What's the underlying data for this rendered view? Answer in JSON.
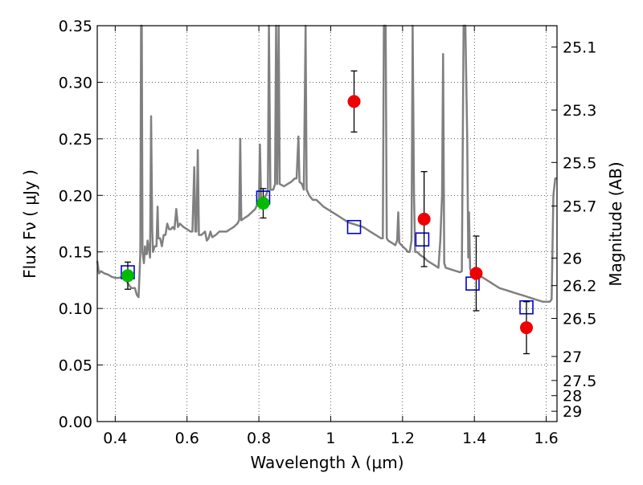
{
  "chart_data": {
    "type": "scatter",
    "xlabel": "Wavelength  λ (μm)",
    "ylabel": "Flux  Fν  ( μJy )",
    "y2label": "Magnitude (AB)",
    "xlim": [
      0.35,
      1.63
    ],
    "ylim": [
      0.0,
      0.35
    ],
    "grid": true,
    "x_ticks": [
      {
        "value": 0.4,
        "label": "0.4"
      },
      {
        "value": 0.6,
        "label": "0.6"
      },
      {
        "value": 0.8,
        "label": "0.8"
      },
      {
        "value": 1.0,
        "label": "1"
      },
      {
        "value": 1.2,
        "label": "1.2"
      },
      {
        "value": 1.4,
        "label": "1.4"
      },
      {
        "value": 1.6,
        "label": "1.6"
      }
    ],
    "y_ticks": [
      {
        "value": 0.0,
        "label": "0.00"
      },
      {
        "value": 0.05,
        "label": "0.05"
      },
      {
        "value": 0.1,
        "label": "0.10"
      },
      {
        "value": 0.15,
        "label": "0.15"
      },
      {
        "value": 0.2,
        "label": "0.20"
      },
      {
        "value": 0.25,
        "label": "0.25"
      },
      {
        "value": 0.3,
        "label": "0.30"
      },
      {
        "value": 0.35,
        "label": "0.35"
      }
    ],
    "y2_ticks": [
      {
        "value": 25.1,
        "label": "25.1"
      },
      {
        "value": 25.3,
        "label": "25.3"
      },
      {
        "value": 25.5,
        "label": "25.5"
      },
      {
        "value": 25.7,
        "label": "25.7"
      },
      {
        "value": 26.0,
        "label": "26"
      },
      {
        "value": 26.2,
        "label": "26.2"
      },
      {
        "value": 26.5,
        "label": "26.5"
      },
      {
        "value": 27.0,
        "label": "27"
      },
      {
        "value": 27.5,
        "label": "27.5"
      },
      {
        "value": 28.0,
        "label": "28"
      },
      {
        "value": 29.0,
        "label": "29"
      }
    ],
    "series": [
      {
        "kind": "line",
        "color": "#808080",
        "points": [
          [
            0.35,
            0.142
          ],
          [
            0.355,
            0.131
          ],
          [
            0.36,
            0.133
          ],
          [
            0.37,
            0.131
          ],
          [
            0.38,
            0.13
          ],
          [
            0.39,
            0.128
          ],
          [
            0.4,
            0.127
          ],
          [
            0.41,
            0.127
          ],
          [
            0.42,
            0.128
          ],
          [
            0.43,
            0.125
          ],
          [
            0.44,
            0.12
          ],
          [
            0.445,
            0.118
          ],
          [
            0.45,
            0.118
          ],
          [
            0.455,
            0.118
          ],
          [
            0.46,
            0.112
          ],
          [
            0.465,
            0.11
          ],
          [
            0.468,
            0.132
          ],
          [
            0.47,
            0.15
          ],
          [
            0.472,
            0.35
          ],
          [
            0.474,
            0.35
          ],
          [
            0.476,
            0.15
          ],
          [
            0.48,
            0.14
          ],
          [
            0.483,
            0.155
          ],
          [
            0.485,
            0.148
          ],
          [
            0.488,
            0.148
          ],
          [
            0.49,
            0.16
          ],
          [
            0.495,
            0.15
          ],
          [
            0.497,
            0.145
          ],
          [
            0.5,
            0.27
          ],
          [
            0.503,
            0.17
          ],
          [
            0.505,
            0.15
          ],
          [
            0.51,
            0.155
          ],
          [
            0.515,
            0.155
          ],
          [
            0.518,
            0.19
          ],
          [
            0.52,
            0.162
          ],
          [
            0.525,
            0.162
          ],
          [
            0.53,
            0.155
          ],
          [
            0.535,
            0.165
          ],
          [
            0.54,
            0.165
          ],
          [
            0.545,
            0.175
          ],
          [
            0.55,
            0.17
          ],
          [
            0.555,
            0.17
          ],
          [
            0.56,
            0.172
          ],
          [
            0.565,
            0.17
          ],
          [
            0.57,
            0.188
          ],
          [
            0.575,
            0.172
          ],
          [
            0.58,
            0.175
          ],
          [
            0.59,
            0.172
          ],
          [
            0.6,
            0.17
          ],
          [
            0.61,
            0.168
          ],
          [
            0.615,
            0.168
          ],
          [
            0.62,
            0.225
          ],
          [
            0.623,
            0.168
          ],
          [
            0.626,
            0.168
          ],
          [
            0.63,
            0.24
          ],
          [
            0.633,
            0.165
          ],
          [
            0.64,
            0.165
          ],
          [
            0.65,
            0.168
          ],
          [
            0.655,
            0.16
          ],
          [
            0.66,
            0.162
          ],
          [
            0.665,
            0.168
          ],
          [
            0.67,
            0.163
          ],
          [
            0.68,
            0.165
          ],
          [
            0.69,
            0.168
          ],
          [
            0.7,
            0.168
          ],
          [
            0.71,
            0.168
          ],
          [
            0.72,
            0.17
          ],
          [
            0.73,
            0.172
          ],
          [
            0.74,
            0.175
          ],
          [
            0.745,
            0.178
          ],
          [
            0.748,
            0.25
          ],
          [
            0.751,
            0.178
          ],
          [
            0.76,
            0.18
          ],
          [
            0.77,
            0.182
          ],
          [
            0.78,
            0.185
          ],
          [
            0.79,
            0.188
          ],
          [
            0.8,
            0.195
          ],
          [
            0.803,
            0.245
          ],
          [
            0.806,
            0.198
          ],
          [
            0.81,
            0.198
          ],
          [
            0.815,
            0.198
          ],
          [
            0.82,
            0.2
          ],
          [
            0.825,
            0.205
          ],
          [
            0.828,
            0.35
          ],
          [
            0.832,
            0.205
          ],
          [
            0.84,
            0.205
          ],
          [
            0.845,
            0.21
          ],
          [
            0.848,
            0.35
          ],
          [
            0.851,
            0.21
          ],
          [
            0.855,
            0.35
          ],
          [
            0.858,
            0.21
          ],
          [
            0.87,
            0.208
          ],
          [
            0.88,
            0.21
          ],
          [
            0.89,
            0.212
          ],
          [
            0.9,
            0.215
          ],
          [
            0.905,
            0.215
          ],
          [
            0.91,
            0.252
          ],
          [
            0.913,
            0.212
          ],
          [
            0.92,
            0.21
          ],
          [
            0.925,
            0.205
          ],
          [
            0.93,
            0.35
          ],
          [
            0.933,
            0.205
          ],
          [
            0.94,
            0.2
          ],
          [
            0.95,
            0.196
          ],
          [
            0.96,
            0.196
          ],
          [
            0.97,
            0.193
          ],
          [
            0.98,
            0.19
          ],
          [
            0.99,
            0.188
          ],
          [
            1.0,
            0.186
          ],
          [
            1.01,
            0.184
          ],
          [
            1.02,
            0.182
          ],
          [
            1.03,
            0.18
          ],
          [
            1.04,
            0.178
          ],
          [
            1.05,
            0.176
          ],
          [
            1.06,
            0.175
          ],
          [
            1.07,
            0.174
          ],
          [
            1.08,
            0.173
          ],
          [
            1.09,
            0.172
          ],
          [
            1.1,
            0.17
          ],
          [
            1.11,
            0.168
          ],
          [
            1.12,
            0.166
          ],
          [
            1.13,
            0.164
          ],
          [
            1.14,
            0.162
          ],
          [
            1.145,
            0.162
          ],
          [
            1.148,
            0.35
          ],
          [
            1.153,
            0.35
          ],
          [
            1.156,
            0.162
          ],
          [
            1.16,
            0.16
          ],
          [
            1.17,
            0.158
          ],
          [
            1.18,
            0.156
          ],
          [
            1.185,
            0.16
          ],
          [
            1.188,
            0.185
          ],
          [
            1.191,
            0.158
          ],
          [
            1.2,
            0.155
          ],
          [
            1.21,
            0.152
          ],
          [
            1.215,
            0.15
          ],
          [
            1.22,
            0.15
          ],
          [
            1.225,
            0.16
          ],
          [
            1.228,
            0.35
          ],
          [
            1.232,
            0.2
          ],
          [
            1.235,
            0.15
          ],
          [
            1.24,
            0.15
          ],
          [
            1.25,
            0.147
          ],
          [
            1.26,
            0.145
          ],
          [
            1.27,
            0.142
          ],
          [
            1.28,
            0.14
          ],
          [
            1.29,
            0.138
          ],
          [
            1.3,
            0.136
          ],
          [
            1.305,
            0.16
          ],
          [
            1.31,
            0.2
          ],
          [
            1.313,
            0.325
          ],
          [
            1.316,
            0.14
          ],
          [
            1.32,
            0.136
          ],
          [
            1.33,
            0.135
          ],
          [
            1.34,
            0.134
          ],
          [
            1.35,
            0.133
          ],
          [
            1.36,
            0.132
          ],
          [
            1.365,
            0.133
          ],
          [
            1.37,
            0.35
          ],
          [
            1.375,
            0.35
          ],
          [
            1.38,
            0.25
          ],
          [
            1.383,
            0.145
          ],
          [
            1.385,
            0.185
          ],
          [
            1.388,
            0.135
          ],
          [
            1.39,
            0.133
          ],
          [
            1.4,
            0.132
          ],
          [
            1.41,
            0.13
          ],
          [
            1.42,
            0.128
          ],
          [
            1.43,
            0.126
          ],
          [
            1.44,
            0.124
          ],
          [
            1.45,
            0.122
          ],
          [
            1.46,
            0.12
          ],
          [
            1.47,
            0.118
          ],
          [
            1.48,
            0.117
          ],
          [
            1.49,
            0.116
          ],
          [
            1.5,
            0.115
          ],
          [
            1.51,
            0.114
          ],
          [
            1.52,
            0.113
          ],
          [
            1.53,
            0.112
          ],
          [
            1.54,
            0.111
          ],
          [
            1.55,
            0.11
          ],
          [
            1.56,
            0.109
          ],
          [
            1.57,
            0.108
          ],
          [
            1.58,
            0.107
          ],
          [
            1.59,
            0.106
          ],
          [
            1.6,
            0.106
          ],
          [
            1.61,
            0.106
          ],
          [
            1.615,
            0.108
          ],
          [
            1.62,
            0.2
          ],
          [
            1.625,
            0.215
          ],
          [
            1.63,
            0.215
          ]
        ]
      },
      {
        "kind": "open-square",
        "color": "#0000cc",
        "x": [
          0.435,
          0.812,
          1.065,
          1.255,
          1.395,
          1.545
        ],
        "y": [
          0.132,
          0.198,
          0.172,
          0.161,
          0.122,
          0.101
        ]
      },
      {
        "kind": "errorbar",
        "color": "#000000",
        "x": [
          0.435,
          0.812,
          1.065,
          1.26,
          1.405,
          1.545
        ],
        "y": [
          0.129,
          0.193,
          0.283,
          0.179,
          0.131,
          0.083
        ],
        "err": [
          0.012,
          0.013,
          0.027,
          0.042,
          0.033,
          0.023
        ]
      },
      {
        "kind": "filled-circle",
        "color": "#00bb00",
        "x": [
          0.435,
          0.812
        ],
        "y": [
          0.129,
          0.193
        ]
      },
      {
        "kind": "filled-circle",
        "color": "#ee0000",
        "x": [
          1.065,
          1.26,
          1.405,
          1.545
        ],
        "y": [
          0.283,
          0.179,
          0.131,
          0.083
        ]
      }
    ]
  }
}
